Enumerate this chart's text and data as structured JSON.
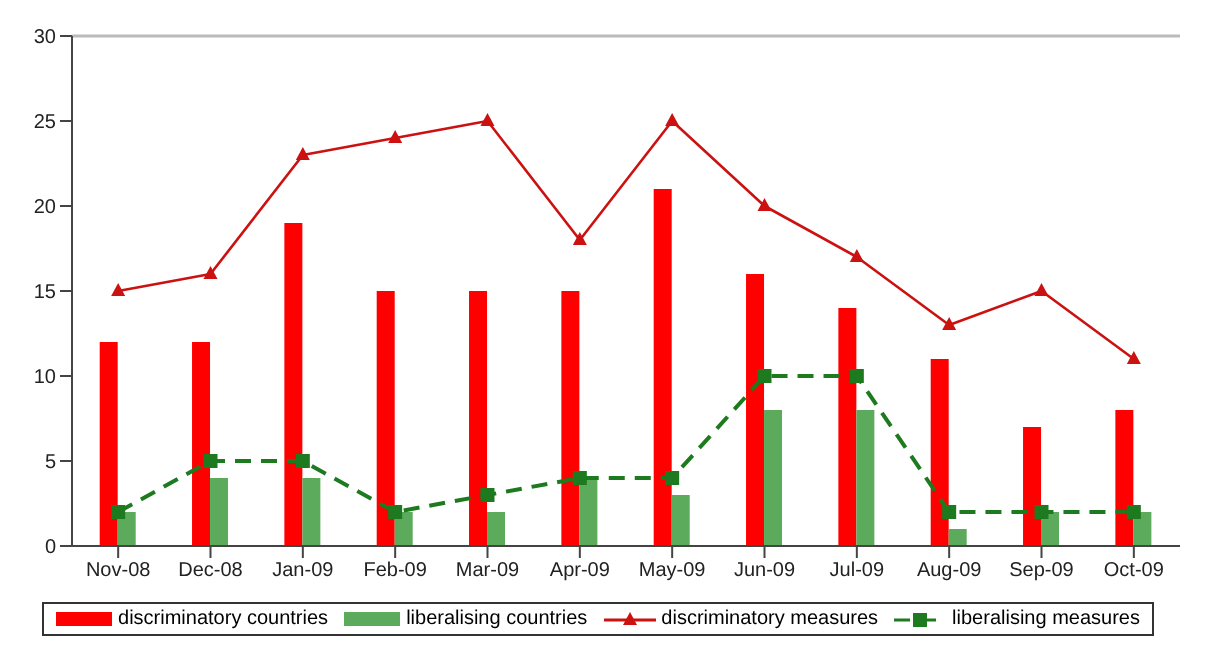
{
  "chart_data": {
    "type": "bar",
    "categories": [
      "Nov-08",
      "Dec-08",
      "Jan-09",
      "Feb-09",
      "Mar-09",
      "Apr-09",
      "May-09",
      "Jun-09",
      "Jul-09",
      "Aug-09",
      "Sep-09",
      "Oct-09"
    ],
    "series": [
      {
        "name": "discriminatory countries",
        "color": "#ff0000",
        "values": [
          12,
          12,
          19,
          15,
          15,
          15,
          21,
          16,
          14,
          11,
          7,
          8
        ]
      },
      {
        "name": "liberalising countries",
        "color": "#5cab5c",
        "values": [
          2,
          4,
          4,
          2,
          2,
          4,
          3,
          8,
          8,
          1,
          2,
          2
        ]
      },
      {
        "name": "discriminatory measures",
        "type": "line",
        "color": "#cc1111",
        "marker": "triangle",
        "line_style": "solid",
        "values": [
          15,
          16,
          23,
          24,
          25,
          18,
          25,
          20,
          17,
          13,
          15,
          11
        ]
      },
      {
        "name": "liberalising measures",
        "type": "line",
        "color": "#1e7a1e",
        "marker": "square",
        "line_style": "dashed",
        "values": [
          2,
          5,
          5,
          2,
          3,
          4,
          4,
          10,
          10,
          2,
          2,
          2
        ]
      }
    ],
    "ylim": [
      0,
      30
    ],
    "yticks": [
      0,
      5,
      10,
      15,
      20,
      25,
      30
    ],
    "grid": false,
    "legend": "bottom"
  }
}
